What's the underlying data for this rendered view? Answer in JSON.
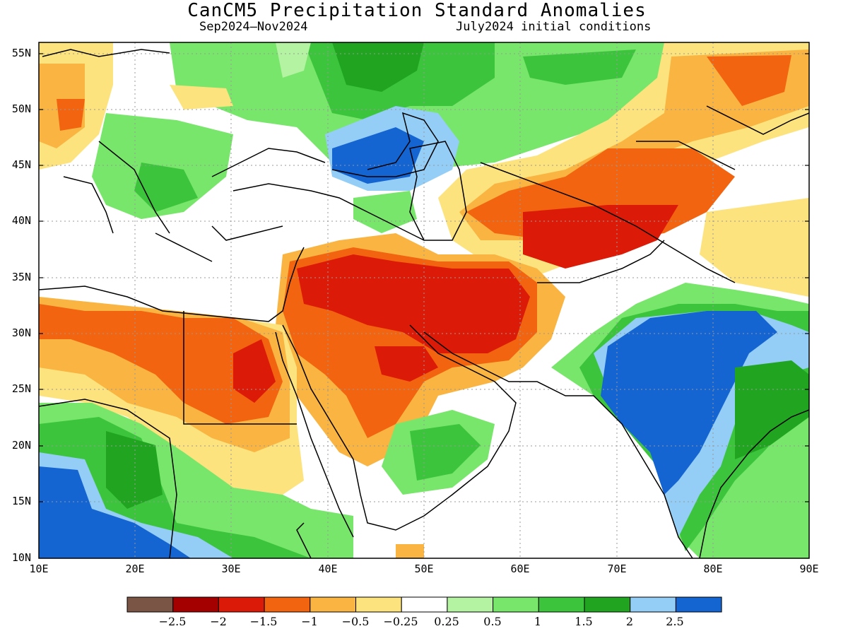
{
  "title": "CanCM5 Precipitation Standard Anomalies",
  "subtitle_left": "Sep2024–Nov2024",
  "subtitle_right": "July2024 initial conditions",
  "lat_labels": [
    "55N",
    "50N",
    "45N",
    "40N",
    "35N",
    "30N",
    "25N",
    "20N",
    "15N",
    "10N"
  ],
  "lon_labels": [
    "10E",
    "20E",
    "30E",
    "40E",
    "50E",
    "60E",
    "70E",
    "80E",
    "90E"
  ],
  "colorbar": {
    "labels": [
      "−2.5",
      "−2",
      "−1.5",
      "−1",
      "−0.5",
      "−0.25",
      "0.25",
      "0.5",
      "1",
      "1.5",
      "2",
      "2.5"
    ],
    "colors": [
      "#7a5545",
      "#a50000",
      "#dc1a08",
      "#f26410",
      "#f9b442",
      "#fde37e",
      "#ffffff",
      "#b3f3a2",
      "#78e66b",
      "#3cc43c",
      "#21a521",
      "#94cdf5",
      "#1464d2"
    ]
  }
}
